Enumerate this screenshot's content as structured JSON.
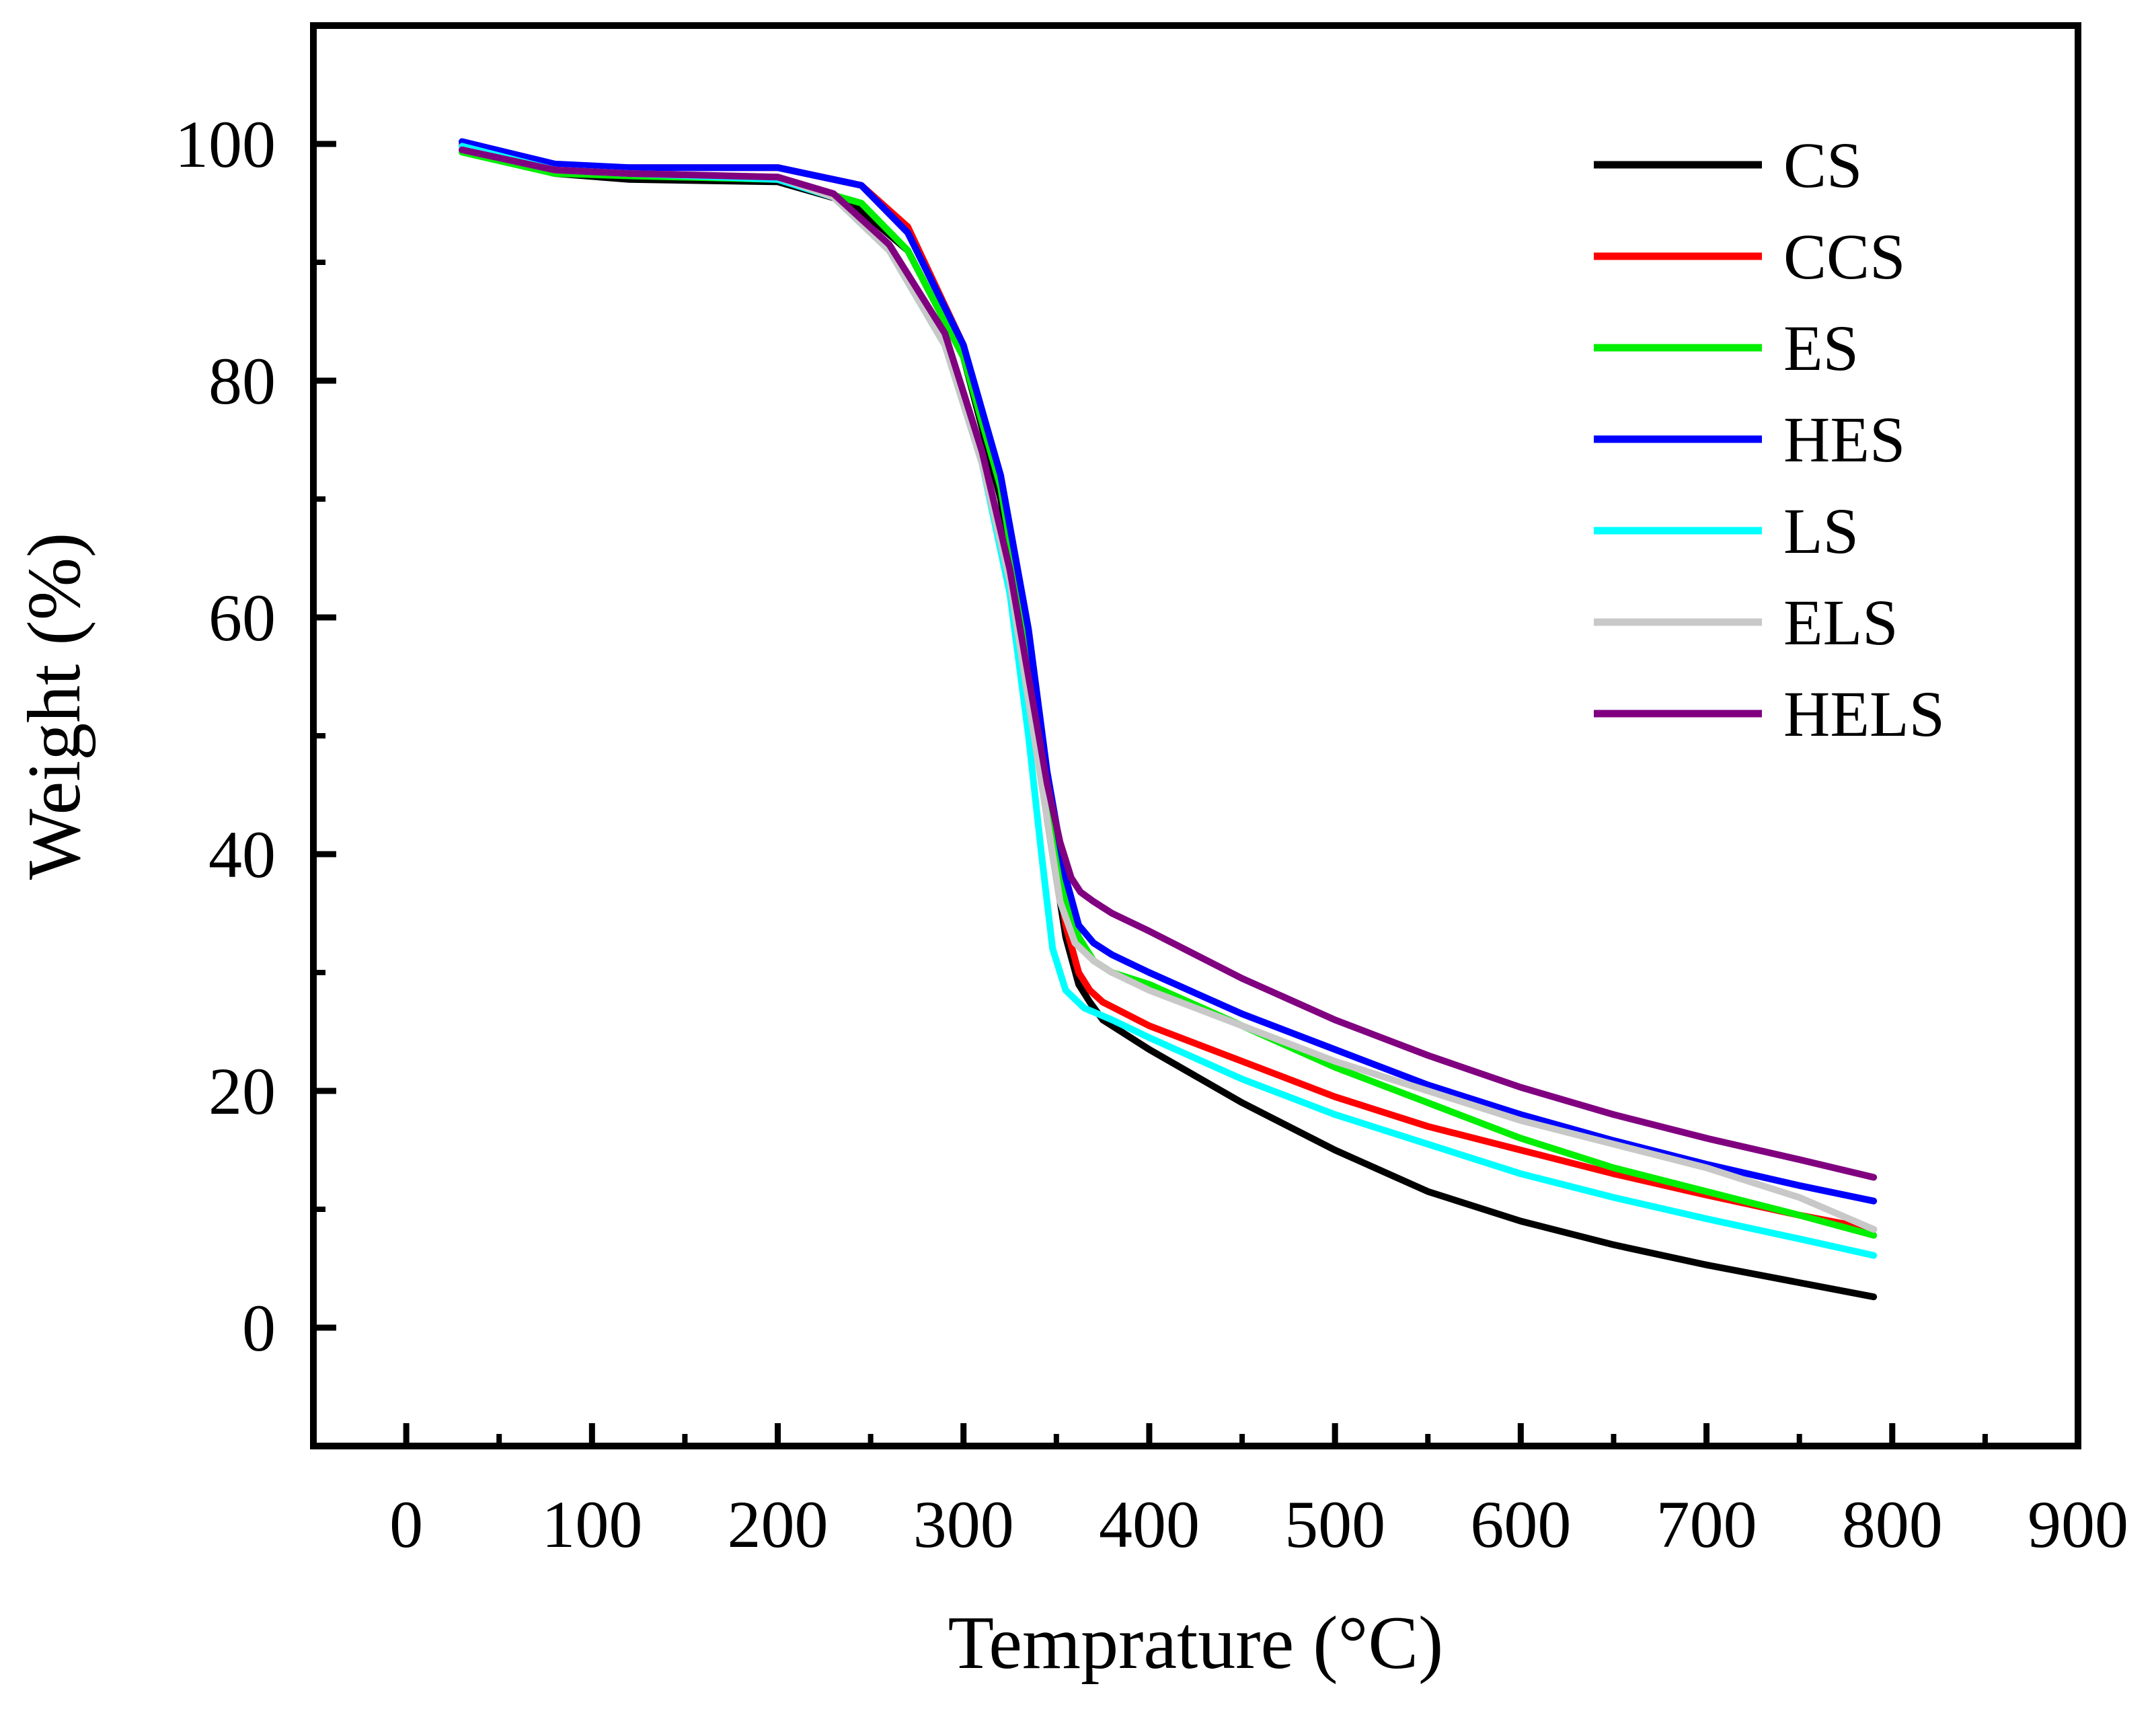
{
  "chart_data": {
    "type": "line",
    "title": "",
    "xlabel": "Temprature (°C)",
    "ylabel": "Weight (%)",
    "xlim": [
      -50,
      900
    ],
    "ylim": [
      -10,
      110
    ],
    "x_ticks": [
      0,
      100,
      200,
      300,
      400,
      500,
      600,
      700,
      800,
      900
    ],
    "y_ticks": [
      0,
      20,
      40,
      60,
      80,
      100
    ],
    "x_tick_labels": [
      "0",
      "100",
      "200",
      "300",
      "400",
      "500",
      "600",
      "700",
      "800",
      "900"
    ],
    "y_tick_labels": [
      "0",
      "20",
      "40",
      "60",
      "80",
      "100"
    ],
    "legend_position": "top-right",
    "grid": false,
    "series": [
      {
        "name": "CS",
        "color": "#000000",
        "x": [
          30,
          80,
          120,
          200,
          240,
          270,
          300,
          320,
          335,
          345,
          355,
          362,
          368,
          375,
          400,
          450,
          500,
          550,
          600,
          650,
          700,
          750,
          790
        ],
        "y": [
          99.5,
          97.5,
          97,
          96.8,
          95,
          91,
          82,
          70,
          56,
          43,
          33,
          29,
          27.5,
          26,
          23.5,
          19,
          15,
          11.5,
          9,
          7,
          5.3,
          3.8,
          2.6
        ]
      },
      {
        "name": "CCS",
        "color": "#ff0000",
        "x": [
          30,
          80,
          120,
          200,
          245,
          270,
          300,
          320,
          335,
          345,
          355,
          362,
          368,
          375,
          400,
          450,
          500,
          550,
          600,
          650,
          700,
          750,
          790
        ],
        "y": [
          100,
          98,
          98,
          98,
          96.5,
          93,
          83,
          71,
          57,
          44,
          34,
          30,
          28.5,
          27.5,
          25.5,
          22.5,
          19.5,
          17,
          15,
          13,
          11.2,
          9.5,
          8.3
        ]
      },
      {
        "name": "ES",
        "color": "#00ee00",
        "x": [
          30,
          80,
          120,
          200,
          245,
          270,
          300,
          320,
          335,
          345,
          355,
          362,
          370,
          380,
          400,
          450,
          500,
          550,
          600,
          650,
          700,
          750,
          790
        ],
        "y": [
          99.3,
          97.5,
          97.3,
          97,
          95,
          91,
          82,
          71,
          57,
          45,
          36,
          33,
          31,
          30,
          29,
          25.5,
          22,
          19,
          16,
          13.5,
          11.5,
          9.5,
          7.8
        ]
      },
      {
        "name": "HES",
        "color": "#0000ff",
        "x": [
          30,
          80,
          120,
          200,
          245,
          270,
          300,
          320,
          335,
          345,
          355,
          362,
          370,
          380,
          400,
          450,
          500,
          550,
          600,
          650,
          700,
          750,
          790
        ],
        "y": [
          100.2,
          98.3,
          98,
          98,
          96.5,
          92.5,
          83,
          72,
          59,
          47,
          38,
          34,
          32.5,
          31.5,
          30,
          26.5,
          23.5,
          20.5,
          18,
          15.8,
          13.8,
          12,
          10.7
        ]
      },
      {
        "name": "LS",
        "color": "#00ffff",
        "x": [
          30,
          80,
          120,
          200,
          230,
          260,
          290,
          310,
          325,
          335,
          342,
          348,
          355,
          365,
          380,
          400,
          450,
          500,
          550,
          600,
          650,
          700,
          750,
          790
        ],
        "y": [
          99.8,
          97.8,
          97.5,
          97,
          95.5,
          91,
          83,
          73,
          62,
          50,
          40,
          32,
          28.5,
          27,
          26,
          24.5,
          21,
          18,
          15.5,
          13,
          11,
          9.2,
          7.5,
          6.1
        ]
      },
      {
        "name": "ELS",
        "color": "#c8c8c8",
        "x": [
          30,
          80,
          120,
          200,
          230,
          260,
          290,
          310,
          325,
          335,
          345,
          352,
          360,
          370,
          380,
          400,
          450,
          500,
          550,
          600,
          650,
          700,
          750,
          790
        ],
        "y": [
          99.5,
          97.8,
          97.5,
          97.2,
          95.5,
          91,
          83,
          73,
          63,
          53,
          43,
          36,
          32.5,
          31,
          30,
          28.5,
          25.5,
          22.5,
          20,
          17.5,
          15.5,
          13.5,
          11,
          8.3
        ]
      },
      {
        "name": "HELS",
        "color": "#800080",
        "x": [
          30,
          80,
          120,
          200,
          230,
          260,
          290,
          310,
          325,
          335,
          345,
          352,
          358,
          363,
          370,
          380,
          400,
          450,
          500,
          550,
          600,
          650,
          700,
          750,
          790
        ],
        "y": [
          99.5,
          97.8,
          97.5,
          97.2,
          95.8,
          91.5,
          84,
          74,
          64,
          55,
          46,
          41,
          38,
          36.8,
          36,
          35,
          33.5,
          29.5,
          26,
          23,
          20.3,
          18,
          16,
          14.2,
          12.7
        ]
      }
    ]
  }
}
